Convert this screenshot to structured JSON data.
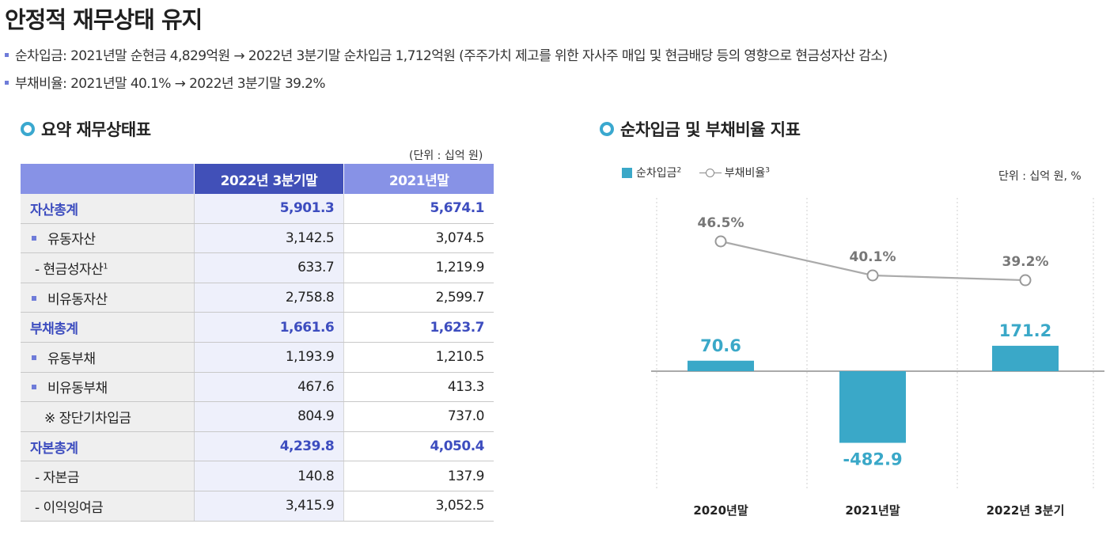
{
  "page": {
    "title": "안정적 재무상태 유지",
    "bullets": [
      "순차입금: 2021년말 순현금 4,829억원 → 2022년 3분기말 순차입금 1,712억원 (주주가치 제고를 위한 자사주 매입 및 현금배당 등의 영향으로 현금성자산 감소)",
      "부채비율: 2021년말 40.1% → 2022년 3분기말 39.2%"
    ]
  },
  "table": {
    "section_title": "요약 재무상태표",
    "unit": "(단위 : 십억 원)",
    "columns": [
      "",
      "2022년 3분기말",
      "2021년말"
    ],
    "rows": [
      {
        "label": "자산총계",
        "prefix": "",
        "sup": "",
        "v1": "5,901.3",
        "v2": "5,674.1"
      },
      {
        "label": "유동자산",
        "prefix": "square",
        "sup": "",
        "v1": "3,142.5",
        "v2": "3,074.5"
      },
      {
        "label": "- 현금성자산",
        "prefix": "",
        "sup": "1",
        "v1": "633.7",
        "v2": "1,219.9"
      },
      {
        "label": "비유동자산",
        "prefix": "square",
        "sup": "",
        "v1": "2,758.8",
        "v2": "2,599.7"
      },
      {
        "label": "부채총계",
        "prefix": "",
        "sup": "",
        "v1": "1,661.6",
        "v2": "1,623.7"
      },
      {
        "label": "유동부채",
        "prefix": "square",
        "sup": "",
        "v1": "1,193.9",
        "v2": "1,210.5"
      },
      {
        "label": "비유동부채",
        "prefix": "square",
        "sup": "",
        "v1": "467.6",
        "v2": "413.3"
      },
      {
        "label": "※ 장단기차입금",
        "prefix": "",
        "sup": "",
        "v1": "804.9",
        "v2": "737.0"
      },
      {
        "label": "자본총계",
        "prefix": "",
        "sup": "",
        "v1": "4,239.8",
        "v2": "4,050.4"
      },
      {
        "label": "- 자본금",
        "prefix": "",
        "sup": "",
        "v1": "140.8",
        "v2": "137.9"
      },
      {
        "label": "- 이익잉여금",
        "prefix": "",
        "sup": "",
        "v1": "3,415.9",
        "v2": "3,052.5"
      }
    ]
  },
  "chart_section": {
    "section_title": "순차입금 및 부채비율 지표",
    "unit": "단위 : 십억 원, %",
    "legend": {
      "bar_label": "순차입금",
      "bar_sup": "2",
      "line_label": "부채비율",
      "line_sup": "3"
    }
  },
  "chart_data": {
    "type": "bar",
    "categories": [
      "2020년말",
      "2021년말",
      "2022년 3분기"
    ],
    "series": [
      {
        "name": "순차입금",
        "type": "bar",
        "values": [
          70.6,
          -482.9,
          171.2
        ],
        "labels": [
          "70.6",
          "-482.9",
          "171.2"
        ],
        "color": "#3aa8c8"
      },
      {
        "name": "부채비율",
        "type": "line",
        "values": [
          46.5,
          40.1,
          39.2
        ],
        "labels": [
          "46.5%",
          "40.1%",
          "39.2%"
        ],
        "color": "#aaaaaa"
      }
    ],
    "legend": "top-left",
    "grid": "vertical dotted separators",
    "colors": {
      "bar_label": "#3aa8c8",
      "line_label": "#777777",
      "header_dark": "#4150b8",
      "header_light": "#8792e6",
      "total_text": "#3d4dbf"
    }
  }
}
